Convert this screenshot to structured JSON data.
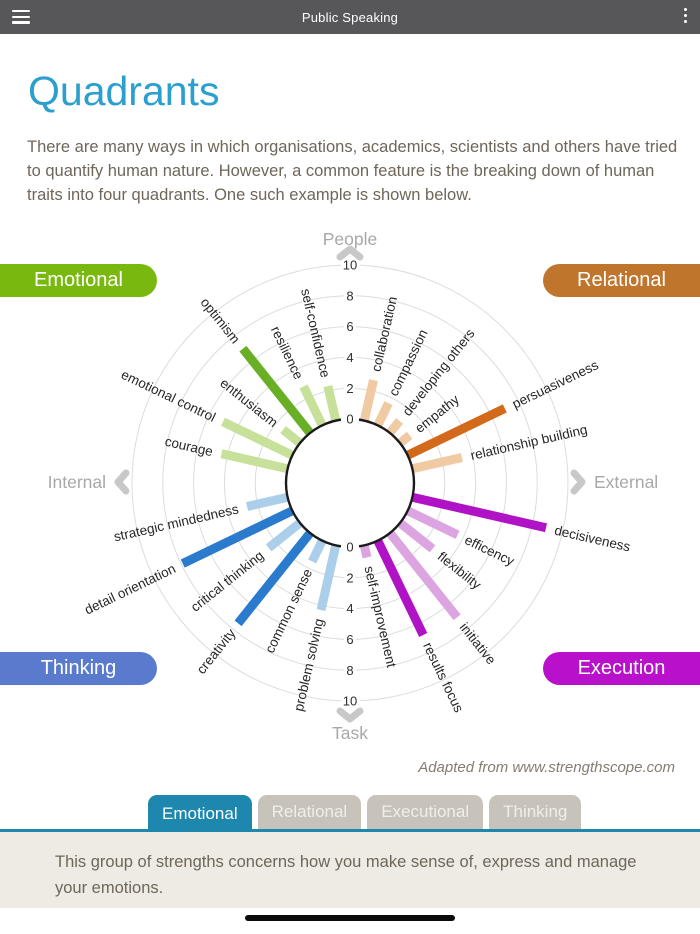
{
  "app_bar": {
    "title": "Public Speaking",
    "menu_icon": "hamburger-icon",
    "overflow_icon": "kebab-menu-icon"
  },
  "page": {
    "title": "Quadrants",
    "intro": "There are many ways in which organisations, academics, scientists and others have tried to quantify human nature. However, a common feature is the breaking down of human traits into four quadrants. One such example is shown below."
  },
  "chart_data": {
    "type": "bar",
    "subtype": "radial-quadrant-bars",
    "scale": {
      "min": 0,
      "max": 10,
      "ticks": [
        0,
        2,
        4,
        6,
        8,
        10
      ]
    },
    "axes": {
      "top": "People",
      "bottom": "Task",
      "left": "Internal",
      "right": "External"
    },
    "quadrants": [
      {
        "name": "Emotional",
        "position": "top-left",
        "start_angle": 270,
        "badge_color": "#79b90f",
        "bar_strong": "#68af25",
        "bar_light": "#c7e09a",
        "spokes": [
          {
            "label": "courage",
            "value": 4.4,
            "emphasis": false
          },
          {
            "label": "emotional control",
            "value": 5.0,
            "emphasis": false
          },
          {
            "label": "enthusiasm",
            "value": 1.4,
            "emphasis": false
          },
          {
            "label": "optimism",
            "value": 7.0,
            "emphasis": true
          },
          {
            "label": "resilience",
            "value": 2.8,
            "emphasis": false
          },
          {
            "label": "self-confidence",
            "value": 2.3,
            "emphasis": false
          }
        ]
      },
      {
        "name": "Relational",
        "position": "top-right",
        "start_angle": 0,
        "badge_color": "#bf752c",
        "bar_strong": "#d2691b",
        "bar_light": "#f0caa3",
        "spokes": [
          {
            "label": "collaboration",
            "value": 2.7,
            "emphasis": false
          },
          {
            "label": "compassion",
            "value": 1.6,
            "emphasis": false
          },
          {
            "label": "developing others",
            "value": 1.0,
            "emphasis": false
          },
          {
            "label": "empathy",
            "value": 0.8,
            "emphasis": false
          },
          {
            "label": "persuasiveness",
            "value": 7.0,
            "emphasis": true
          },
          {
            "label": "relationship building",
            "value": 3.3,
            "emphasis": false
          }
        ]
      },
      {
        "name": "Thinking",
        "position": "bottom-left",
        "start_angle": 180,
        "badge_color": "#5a7ace",
        "bar_strong": "#2a7ace",
        "bar_light": "#abceea",
        "spokes": [
          {
            "label": "problem solving",
            "value": 4.3,
            "emphasis": false
          },
          {
            "label": "common sense",
            "value": 1.5,
            "emphasis": false
          },
          {
            "label": "creativity",
            "value": 7.5,
            "emphasis": true
          },
          {
            "label": "critical thinking",
            "value": 2.6,
            "emphasis": false
          },
          {
            "label": "detail orientation",
            "value": 7.9,
            "emphasis": true
          },
          {
            "label": "strategic mindedness",
            "value": 2.7,
            "emphasis": false
          }
        ]
      },
      {
        "name": "Execution",
        "position": "bottom-right",
        "start_angle": 90,
        "badge_color": "#b911cb",
        "bar_strong": "#b013c5",
        "bar_light": "#dda4e2",
        "spokes": [
          {
            "label": "decisiveness",
            "value": 8.9,
            "emphasis": true
          },
          {
            "label": "efficency",
            "value": 3.6,
            "emphasis": false
          },
          {
            "label": "flexibility",
            "value": 2.7,
            "emphasis": false
          },
          {
            "label": "initiative",
            "value": 7.0,
            "emphasis": false
          },
          {
            "label": "results focus",
            "value": 6.8,
            "emphasis": true
          },
          {
            "label": "self-improvement",
            "value": 0.8,
            "emphasis": false
          }
        ]
      }
    ],
    "grid": true,
    "attribution": "Adapted from www.strengthscope.com"
  },
  "tabs": [
    {
      "label": "Emotional",
      "active": true
    },
    {
      "label": "Relational",
      "active": false
    },
    {
      "label": "Executional",
      "active": false
    },
    {
      "label": "Thinking",
      "active": false
    }
  ],
  "panel": {
    "text": "This group of strengths concerns how you make sense of, express and manage your emotions."
  },
  "colors": {
    "appbar_bg": "#57575a",
    "heading": "#2b9fcd",
    "body_text": "#6f665a",
    "tab_active": "#1d87ae",
    "tab_inactive": "#c7c3bb",
    "panel_bg": "#edebe3",
    "grid_line": "#dcdcdc",
    "axis_gray": "#a8a8a8"
  }
}
